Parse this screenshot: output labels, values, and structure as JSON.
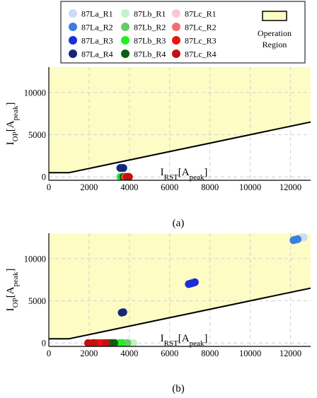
{
  "legend": {
    "entries": [
      {
        "label": "87La_R1",
        "color": "#c9dcf7"
      },
      {
        "label": "87Lb_R1",
        "color": "#c6f2c6"
      },
      {
        "label": "87Lc_R1",
        "color": "#f8c9cf"
      },
      {
        "label": "87La_R2",
        "color": "#3a7fde"
      },
      {
        "label": "87Lb_R2",
        "color": "#66cc66"
      },
      {
        "label": "87Lc_R2",
        "color": "#f07070"
      },
      {
        "label": "87La_R3",
        "color": "#1a2fd8"
      },
      {
        "label": "87Lb_R3",
        "color": "#22ee22"
      },
      {
        "label": "87Lc_R3",
        "color": "#ee1111"
      },
      {
        "label": "87La_R4",
        "color": "#14287a"
      },
      {
        "label": "87Lb_R4",
        "color": "#0e5e0e"
      },
      {
        "label": "87Lc_R4",
        "color": "#c41010"
      }
    ],
    "region_label_line1": "Operation",
    "region_label_line2": "Region",
    "region_color": "#fdfcc4"
  },
  "chart_data": [
    {
      "type": "scatter",
      "caption": "(a)",
      "xlabel_main": "I",
      "xlabel_sub": "RST",
      "xlabel_unit_main": "[A",
      "xlabel_unit_sub": "peak",
      "xlabel_unit_end": "]",
      "ylabel_main": "I",
      "ylabel_sub": "OP",
      "ylabel_unit_main": "[A",
      "ylabel_unit_sub": "peak",
      "ylabel_unit_end": "]",
      "xlim": [
        0,
        13000
      ],
      "ylim": [
        -400,
        13000
      ],
      "xticks": [
        "0",
        "2000",
        "4000",
        "6000",
        "8000",
        "10000",
        "12000"
      ],
      "xtick_values": [
        0,
        2000,
        4000,
        6000,
        8000,
        10000,
        12000
      ],
      "yticks": [
        "0",
        "5000",
        "10000"
      ],
      "ytick_values": [
        0,
        5000,
        10000
      ],
      "grid": true,
      "operation_boundary": {
        "x": [
          0,
          1000,
          13000
        ],
        "y": [
          500,
          500,
          6500
        ]
      },
      "series": [
        {
          "name": "87La_R4",
          "points": [
            [
              3550,
              1050
            ],
            [
              3650,
              1060
            ],
            [
              3700,
              1050
            ]
          ]
        },
        {
          "name": "87Lb_R2",
          "points": [
            [
              3550,
              0
            ],
            [
              3650,
              0
            ]
          ]
        },
        {
          "name": "87Lb_R3",
          "points": [
            [
              3600,
              0
            ],
            [
              3700,
              0
            ]
          ]
        },
        {
          "name": "87Lb_R4",
          "points": [
            [
              3700,
              0
            ],
            [
              3800,
              0
            ]
          ]
        },
        {
          "name": "87Lc_R2",
          "points": [
            [
              3800,
              0
            ]
          ]
        },
        {
          "name": "87Lc_R3",
          "points": [
            [
              3850,
              0
            ],
            [
              3950,
              0
            ]
          ]
        },
        {
          "name": "87Lc_R4",
          "points": [
            [
              3900,
              0
            ],
            [
              3980,
              0
            ]
          ]
        }
      ]
    },
    {
      "type": "scatter",
      "caption": "(b)",
      "xlabel_main": "I",
      "xlabel_sub": "RST",
      "xlabel_unit_main": "[A",
      "xlabel_unit_sub": "peak",
      "xlabel_unit_end": "]",
      "ylabel_main": "I",
      "ylabel_sub": "OP",
      "ylabel_unit_main": "[A",
      "ylabel_unit_sub": "peak",
      "ylabel_unit_end": "]",
      "xlim": [
        0,
        13000
      ],
      "ylim": [
        -400,
        13000
      ],
      "xticks": [
        "0",
        "2000",
        "4000",
        "6000",
        "8000",
        "10000",
        "12000"
      ],
      "xtick_values": [
        0,
        2000,
        4000,
        6000,
        8000,
        10000,
        12000
      ],
      "yticks": [
        "0",
        "5000",
        "10000"
      ],
      "ytick_values": [
        0,
        5000,
        10000
      ],
      "grid": true,
      "operation_boundary": {
        "x": [
          0,
          1000,
          13000
        ],
        "y": [
          500,
          500,
          6500
        ]
      },
      "series": [
        {
          "name": "87La_R1",
          "points": [
            [
              12450,
              12420
            ],
            [
              12550,
              12480
            ],
            [
              12650,
              12520
            ]
          ]
        },
        {
          "name": "87La_R2",
          "points": [
            [
              12150,
              12180
            ],
            [
              12250,
              12250
            ],
            [
              12350,
              12300
            ]
          ]
        },
        {
          "name": "87La_R3",
          "points": [
            [
              6950,
              6980
            ],
            [
              7050,
              7050
            ],
            [
              7150,
              7120
            ],
            [
              7250,
              7200
            ]
          ]
        },
        {
          "name": "87La_R4",
          "points": [
            [
              3620,
              3600
            ],
            [
              3700,
              3650
            ]
          ]
        },
        {
          "name": "87Lb_R1",
          "points": [
            [
              4000,
              0
            ],
            [
              4200,
              0
            ]
          ]
        },
        {
          "name": "87Lb_R2",
          "points": [
            [
              3700,
              0
            ],
            [
              3900,
              0
            ]
          ]
        },
        {
          "name": "87Lb_R3",
          "points": [
            [
              3300,
              0
            ],
            [
              3500,
              0
            ],
            [
              3600,
              0
            ]
          ]
        },
        {
          "name": "87Lb_R4",
          "points": [
            [
              3000,
              0
            ],
            [
              3150,
              0
            ],
            [
              3250,
              0
            ]
          ]
        },
        {
          "name": "87Lc_R1",
          "points": [
            [
              2600,
              0
            ],
            [
              2800,
              0
            ]
          ]
        },
        {
          "name": "87Lc_R2",
          "points": [
            [
              2350,
              0
            ],
            [
              2550,
              0
            ],
            [
              2750,
              0
            ]
          ]
        },
        {
          "name": "87Lc_R3",
          "points": [
            [
              2150,
              0
            ],
            [
              2450,
              0
            ],
            [
              2650,
              0
            ]
          ]
        },
        {
          "name": "87Lc_R4",
          "points": [
            [
              1950,
              0
            ],
            [
              2250,
              0
            ],
            [
              2850,
              0
            ]
          ]
        }
      ]
    }
  ]
}
